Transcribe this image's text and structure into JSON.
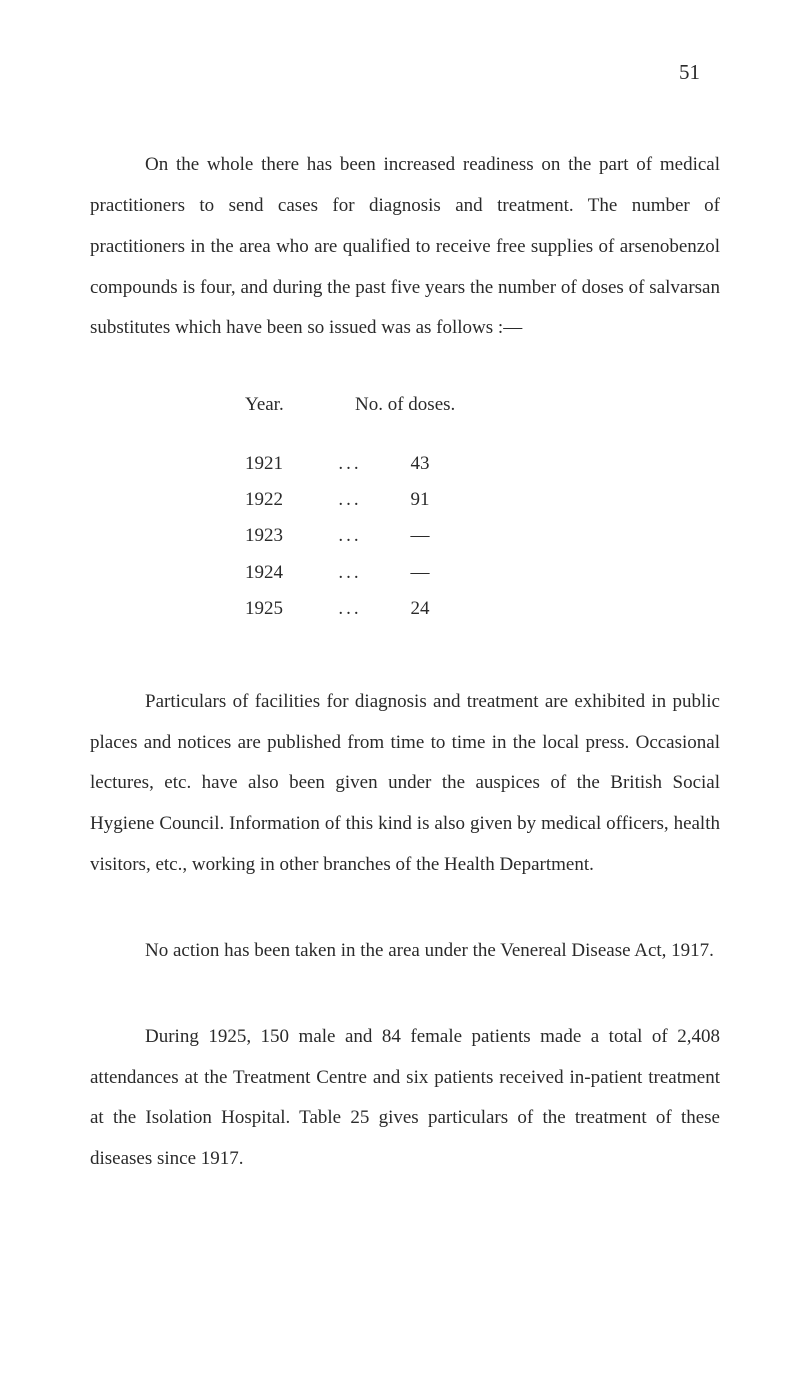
{
  "page_number": "51",
  "paragraph_1": "On the whole there has been increased readiness on the part of medical practitioners to send cases for diagnosis and treatment. The number of practitioners in the area who are qualified to receive free supplies of arsenobenzol compounds is four, and during the past five years the number of doses of salvarsan substitutes which have been so issued was as follows :—",
  "table": {
    "header_year": "Year.",
    "header_doses": "No. of doses.",
    "rows": [
      {
        "year": "1921",
        "dots": "...",
        "value": "43"
      },
      {
        "year": "1922",
        "dots": "...",
        "value": "91"
      },
      {
        "year": "1923",
        "dots": "...",
        "value": "—"
      },
      {
        "year": "1924",
        "dots": "...",
        "value": "—"
      },
      {
        "year": "1925",
        "dots": "...",
        "value": "24"
      }
    ]
  },
  "paragraph_2": "Particulars of facilities for diagnosis and treatment are exhibited in public places and notices are published from time to time in the local press. Occasional lectures, etc. have also been given under the auspices of the British Social Hygiene Council. Information of this kind is also given by medical officers, health visitors, etc., working in other branches of the Health Department.",
  "paragraph_3": "No action has been taken in the area under the Venereal Disease Act, 1917.",
  "paragraph_4": "During 1925, 150 male and 84 female patients made a total of 2,408 attendances at the Treatment Centre and six patients received in-patient treatment at the Isolation Hospital. Table 25 gives particulars of the treatment of these diseases since 1917.",
  "colors": {
    "background": "#ffffff",
    "text": "#2a2a2a"
  },
  "typography": {
    "body_fontsize": 19,
    "line_height": 2.15,
    "font_family": "Georgia, Times New Roman, serif"
  }
}
